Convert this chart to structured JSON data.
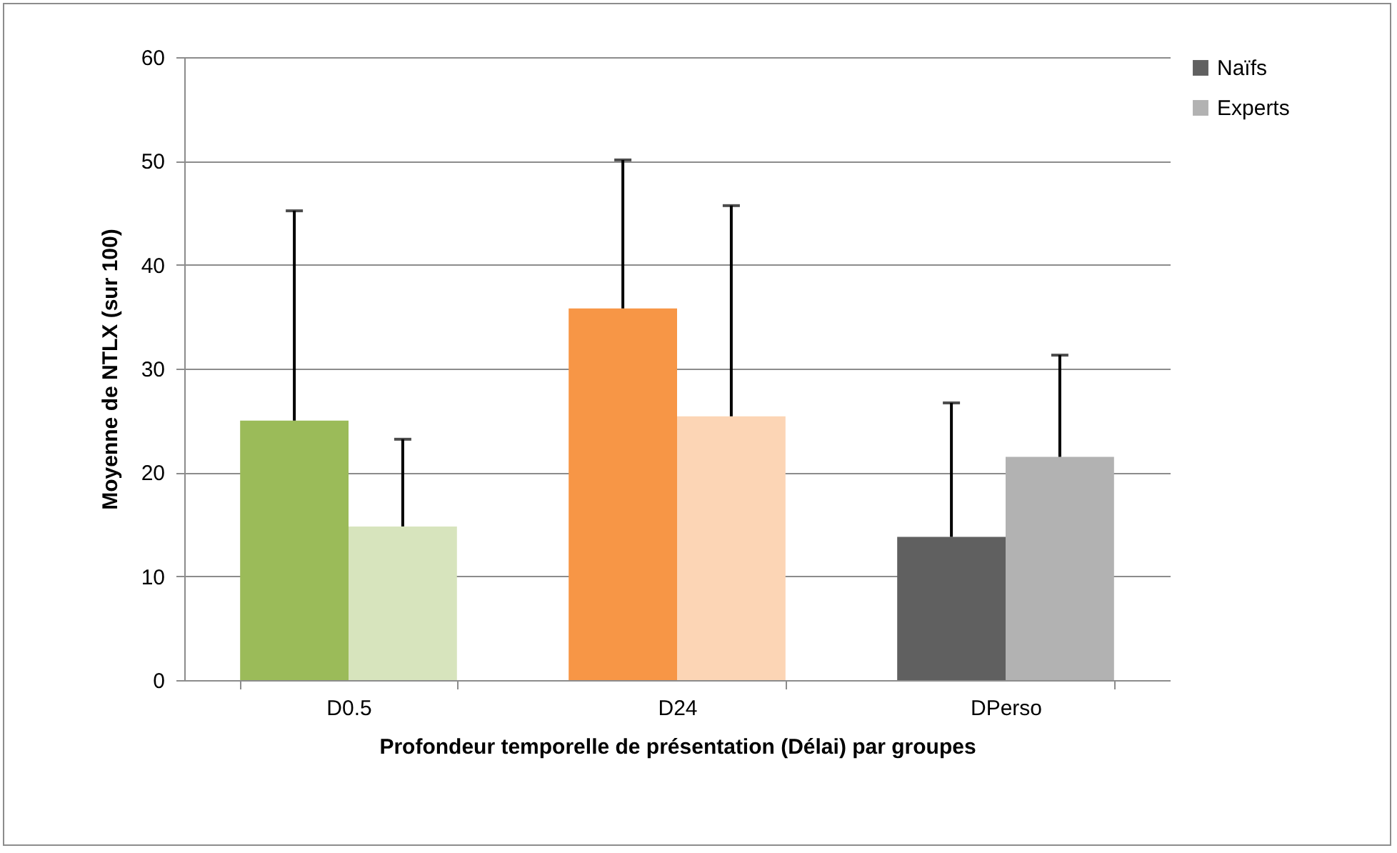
{
  "chart_data": {
    "type": "bar",
    "xlabel": "Profondeur temporelle de présentation (Délai) par groupes",
    "ylabel": "Moyenne de NTLX (sur 100)",
    "categories": [
      "D0.5",
      "D24",
      "DPerso"
    ],
    "series": [
      {
        "name": "Naïfs",
        "color": "#606060",
        "colors": [
          "#9bbb59",
          "#f79646",
          "#606060"
        ],
        "values": [
          25,
          35.8,
          13.8
        ],
        "errors": [
          [
            25,
            45.2
          ],
          [
            35.8,
            50.1
          ],
          [
            13.8,
            26.7
          ]
        ]
      },
      {
        "name": "Experts",
        "color": "#b2b2b2",
        "colors": [
          "#d7e4bd",
          "#fcd5b5",
          "#b2b2b2"
        ],
        "values": [
          14.8,
          25.4,
          21.5
        ],
        "errors": [
          [
            14.8,
            23.2
          ],
          [
            25.4,
            45.7
          ],
          [
            21.5,
            31.3
          ]
        ]
      }
    ],
    "ylim": [
      0,
      60
    ],
    "yticks": [
      0,
      10,
      20,
      30,
      40,
      50,
      60
    ],
    "grid": "y",
    "legend": "right"
  }
}
